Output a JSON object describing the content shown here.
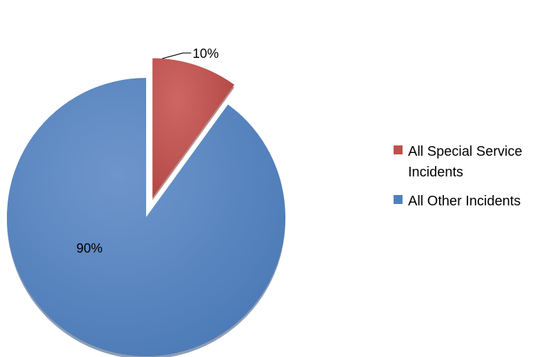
{
  "chart_data": {
    "type": "pie",
    "title": "",
    "slices": [
      {
        "label": "All Special Service Incidents",
        "value": 10,
        "display": "10%",
        "color": "#C0504D",
        "exploded": true
      },
      {
        "label": "All Other Incidents",
        "value": 90,
        "display": "90%",
        "color": "#4F81BD",
        "exploded": false
      }
    ],
    "legend_position": "right",
    "start_angle_deg": 0,
    "direction": "clockwise"
  }
}
